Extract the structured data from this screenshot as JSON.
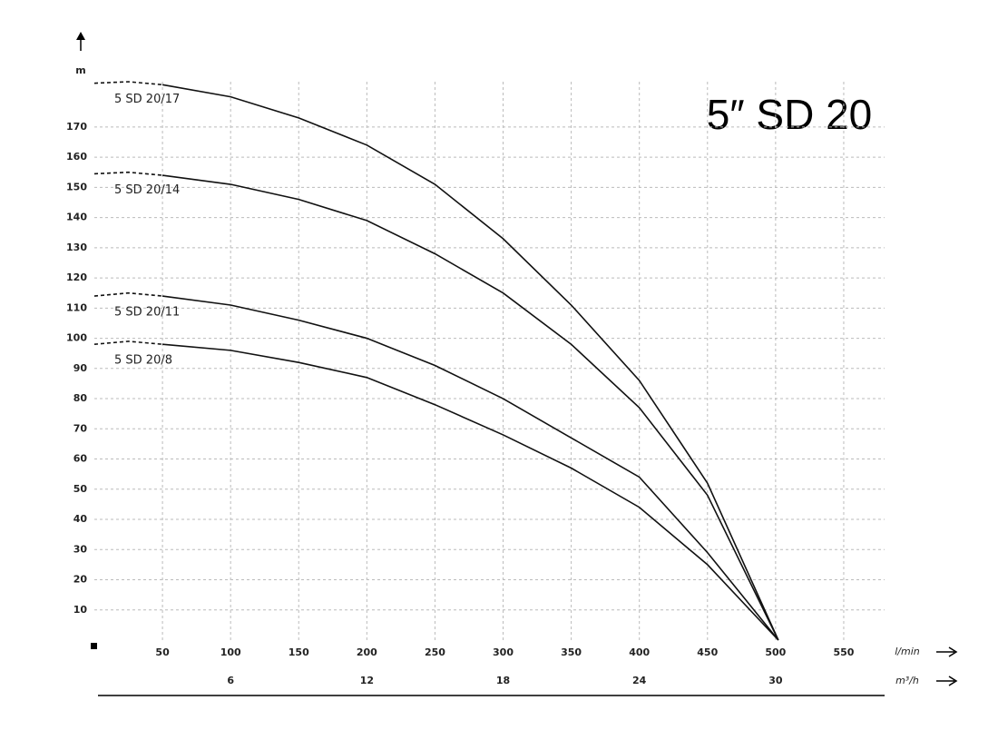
{
  "chart_data": {
    "type": "line",
    "title": "5″ SD 20",
    "y_label": "m",
    "x_label": "l/min",
    "x2_label": "m³/h",
    "x": [
      0,
      25,
      50,
      100,
      150,
      200,
      250,
      300,
      350,
      400,
      450,
      502
    ],
    "series": [
      {
        "name": "5 SD 20/17",
        "color": "#111111",
        "values": [
          184.5,
          185,
          184,
          180,
          173,
          164,
          151,
          133,
          111,
          86,
          52,
          0
        ]
      },
      {
        "name": "5 SD 20/14",
        "color": "#111111",
        "values": [
          154.5,
          155,
          154,
          151,
          146,
          139,
          128,
          115,
          98,
          77,
          48,
          0
        ]
      },
      {
        "name": "5 SD 20/11",
        "color": "#111111",
        "values": [
          114,
          115,
          114,
          111,
          106,
          100,
          91,
          80,
          67,
          54,
          29,
          0
        ]
      },
      {
        "name": "5 SD 20/8",
        "color": "#111111",
        "values": [
          98,
          99,
          98,
          96,
          92,
          87,
          78,
          68,
          57,
          44,
          25,
          0
        ]
      }
    ],
    "line_style": {
      "dashed_until_x": 50
    },
    "xlim": [
      0,
      580
    ],
    "xticks": [
      50,
      100,
      150,
      200,
      250,
      300,
      350,
      400,
      450,
      500,
      550
    ],
    "x2lim": [
      0,
      34.8
    ],
    "x2ticks": [
      6,
      12,
      18,
      24,
      30
    ],
    "ylim": [
      0,
      185
    ],
    "yticks": [
      10,
      20,
      30,
      40,
      50,
      60,
      70,
      80,
      90,
      100,
      110,
      120,
      130,
      140,
      150,
      160,
      170
    ],
    "grid": true
  }
}
